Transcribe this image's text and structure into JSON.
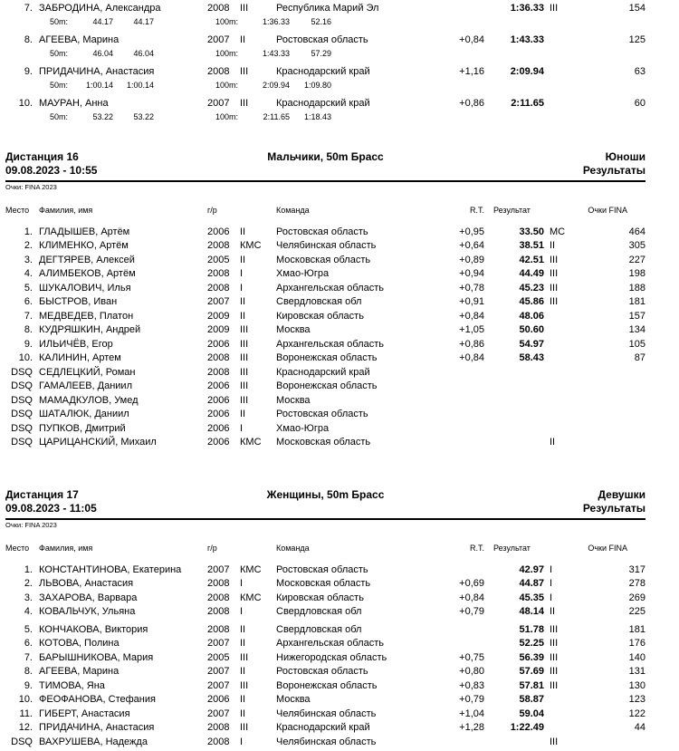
{
  "style": {
    "text_color": "#000000",
    "background_color": "#ffffff"
  },
  "continuation": {
    "rows": [
      {
        "place": "7.",
        "name": "ЗАБРОДИНА, Александра",
        "year": "2008",
        "rank": "III",
        "team": "Республика Марий Эл",
        "rt": "",
        "result": "1:36.33",
        "result_rank": "III",
        "points": "154",
        "split_label_50": "50m:",
        "split_50_a": "44.17",
        "split_50_b": "44.17",
        "split_label_100": "100m:",
        "split_100_a": "1:36.33",
        "split_100_b": "52.16"
      },
      {
        "place": "8.",
        "name": "АГЕЕВА, Марина",
        "year": "2007",
        "rank": "II",
        "team": "Ростовская область",
        "rt": "+0,84",
        "result": "1:43.33",
        "result_rank": "",
        "points": "125",
        "split_label_50": "50m:",
        "split_50_a": "46.04",
        "split_50_b": "46.04",
        "split_label_100": "100m:",
        "split_100_a": "1:43.33",
        "split_100_b": "57.29"
      },
      {
        "place": "9.",
        "name": "ПРИДАЧИНА, Анастасия",
        "year": "2008",
        "rank": "III",
        "team": "Краснодарский край",
        "rt": "+1,16",
        "result": "2:09.94",
        "result_rank": "",
        "points": "63",
        "split_label_50": "50m:",
        "split_50_a": "1:00.14",
        "split_50_b": "1:00.14",
        "split_label_100": "100m:",
        "split_100_a": "2:09.94",
        "split_100_b": "1:09.80"
      },
      {
        "place": "10.",
        "name": "МАУРАН, Анна",
        "year": "2007",
        "rank": "III",
        "team": "Краснодарский край",
        "rt": "+0,86",
        "result": "2:11.65",
        "result_rank": "",
        "points": "60",
        "split_label_50": "50m:",
        "split_50_a": "53.22",
        "split_50_b": "53.22",
        "split_label_100": "100m:",
        "split_100_a": "2:11.65",
        "split_100_b": "1:18.43"
      }
    ]
  },
  "sections": [
    {
      "distance_label": "Дистанция 16",
      "datetime": "09.08.2023 - 10:55",
      "event_title": "Мальчики, 50m Брасс",
      "group_label": "Юноши",
      "results_label": "Результаты",
      "points_note": "Очки: FINA 2023",
      "columns": {
        "place": "Место",
        "name": "Фамилия, имя",
        "year": "г/р",
        "team": "Команда",
        "rt": "R.T.",
        "result": "Результат",
        "points": "Очки FINA"
      },
      "rows": [
        {
          "place": "1.",
          "name": "ГЛАДЫШЕВ, Артём",
          "year": "2006",
          "rank": "II",
          "team": "Ростовская область",
          "rt": "+0,95",
          "result": "33.50",
          "result_rank": "МС",
          "points": "464"
        },
        {
          "place": "2.",
          "name": "КЛИМЕНКО, Артём",
          "year": "2008",
          "rank": "КМС",
          "team": "Челябинская область",
          "rt": "+0,64",
          "result": "38.51",
          "result_rank": "II",
          "points": "305"
        },
        {
          "place": "3.",
          "name": "ДЕГТЯРЕВ, Алексей",
          "year": "2005",
          "rank": "II",
          "team": "Московская область",
          "rt": "+0,89",
          "result": "42.51",
          "result_rank": "III",
          "points": "227"
        },
        {
          "place": "4.",
          "name": "АЛИМБЕКОВ, Артём",
          "year": "2008",
          "rank": "I",
          "team": "Хмао-Югра",
          "rt": "+0,94",
          "result": "44.49",
          "result_rank": "III",
          "points": "198"
        },
        {
          "place": "5.",
          "name": "ШУКАЛОВИЧ, Илья",
          "year": "2008",
          "rank": "I",
          "team": "Архангельская область",
          "rt": "+0,78",
          "result": "45.23",
          "result_rank": "III",
          "points": "188"
        },
        {
          "place": "6.",
          "name": "БЫСТРОВ, Иван",
          "year": "2007",
          "rank": "II",
          "team": "Свердловская обл",
          "rt": "+0,91",
          "result": "45.86",
          "result_rank": "III",
          "points": "181"
        },
        {
          "place": "7.",
          "name": "МЕДВЕДЕВ, Платон",
          "year": "2009",
          "rank": "II",
          "team": "Кировская область",
          "rt": "+0,84",
          "result": "48.06",
          "result_rank": "",
          "points": "157"
        },
        {
          "place": "8.",
          "name": "КУДРЯШКИН, Андрей",
          "year": "2009",
          "rank": "III",
          "team": "Москва",
          "rt": "+1,05",
          "result": "50.60",
          "result_rank": "",
          "points": "134"
        },
        {
          "place": "9.",
          "name": "ИЛЬИЧЁВ, Егор",
          "year": "2006",
          "rank": "III",
          "team": "Архангельская область",
          "rt": "+0,86",
          "result": "54.97",
          "result_rank": "",
          "points": "105"
        },
        {
          "place": "10.",
          "name": "КАЛИНИН, Артем",
          "year": "2008",
          "rank": "III",
          "team": "Воронежская область",
          "rt": "+0,84",
          "result": "58.43",
          "result_rank": "",
          "points": "87"
        },
        {
          "place": "DSQ",
          "name": "СЕДЛЕЦКИЙ, Роман",
          "year": "2008",
          "rank": "III",
          "team": "Краснодарский край",
          "rt": "",
          "result": "",
          "result_rank": "",
          "points": ""
        },
        {
          "place": "DSQ",
          "name": "ГАМАЛЕЕВ, Даниил",
          "year": "2006",
          "rank": "III",
          "team": "Воронежская область",
          "rt": "",
          "result": "",
          "result_rank": "",
          "points": ""
        },
        {
          "place": "DSQ",
          "name": "МАМАДКУЛОВ, Умед",
          "year": "2006",
          "rank": "III",
          "team": "Москва",
          "rt": "",
          "result": "",
          "result_rank": "",
          "points": ""
        },
        {
          "place": "DSQ",
          "name": "ШАТАЛЮК, Даниил",
          "year": "2006",
          "rank": "II",
          "team": "Ростовская область",
          "rt": "",
          "result": "",
          "result_rank": "",
          "points": ""
        },
        {
          "place": "DSQ",
          "name": "ПУПКОВ, Дмитрий",
          "year": "2006",
          "rank": "I",
          "team": "Хмао-Югра",
          "rt": "",
          "result": "",
          "result_rank": "",
          "points": ""
        },
        {
          "place": "DSQ",
          "name": "ЦАРИЦАНСКИЙ, Михаил",
          "year": "2006",
          "rank": "КМС",
          "team": "Московская область",
          "rt": "",
          "result": "",
          "result_rank": "II",
          "points": ""
        }
      ]
    },
    {
      "distance_label": "Дистанция 17",
      "datetime": "09.08.2023 - 11:05",
      "event_title": "Женщины, 50m Брасс",
      "group_label": "Девушки",
      "results_label": "Результаты",
      "points_note": "Очки: FINA 2023",
      "columns": {
        "place": "Место",
        "name": "Фамилия, имя",
        "year": "г/р",
        "team": "Команда",
        "rt": "R.T.",
        "result": "Результат",
        "points": "Очки FINA"
      },
      "rows": [
        {
          "place": "1.",
          "name": "КОНСТАНТИНОВА, Екатерина",
          "year": "2007",
          "rank": "КМС",
          "team": "Ростовская область",
          "rt": "",
          "result": "42.97",
          "result_rank": "I",
          "points": "317"
        },
        {
          "place": "2.",
          "name": "ЛЬВОВА, Анастасия",
          "year": "2008",
          "rank": "I",
          "team": "Московская область",
          "rt": "+0,69",
          "result": "44.87",
          "result_rank": "I",
          "points": "278"
        },
        {
          "place": "3.",
          "name": "ЗАХАРОВА, Варвара",
          "year": "2008",
          "rank": "КМС",
          "team": "Кировская область",
          "rt": "+0,84",
          "result": "45.35",
          "result_rank": "I",
          "points": "269"
        },
        {
          "place": "4.",
          "name": "КОВАЛЬЧУК, Ульяна",
          "year": "2008",
          "rank": "I",
          "team": "Свердловская обл",
          "rt": "+0,79",
          "result": "48.14",
          "result_rank": "II",
          "points": "225"
        },
        {
          "place": "5.",
          "name": "КОНЧАКОВА, Виктория",
          "year": "2008",
          "rank": "II",
          "team": "Свердловская обл",
          "rt": "",
          "result": "51.78",
          "result_rank": "III",
          "points": "181"
        },
        {
          "place": "6.",
          "name": "КОТОВА, Полина",
          "year": "2007",
          "rank": "II",
          "team": "Архангельская область",
          "rt": "",
          "result": "52.25",
          "result_rank": "III",
          "points": "176"
        },
        {
          "place": "7.",
          "name": "БАРЫШНИКОВА, Мария",
          "year": "2005",
          "rank": "III",
          "team": "Нижегородская область",
          "rt": "+0,75",
          "result": "56.39",
          "result_rank": "III",
          "points": "140"
        },
        {
          "place": "8.",
          "name": "АГЕЕВА, Марина",
          "year": "2007",
          "rank": "II",
          "team": "Ростовская область",
          "rt": "+0,80",
          "result": "57.69",
          "result_rank": "III",
          "points": "131"
        },
        {
          "place": "9.",
          "name": "ТИМОВА, Яна",
          "year": "2007",
          "rank": "III",
          "team": "Воронежская область",
          "rt": "+0,83",
          "result": "57.81",
          "result_rank": "III",
          "points": "130"
        },
        {
          "place": "10.",
          "name": "ФЕОФАНОВА, Стефания",
          "year": "2006",
          "rank": "II",
          "team": "Москва",
          "rt": "+0,79",
          "result": "58.87",
          "result_rank": "",
          "points": "123"
        },
        {
          "place": "11.",
          "name": "ГИБЕРТ, Анастасия",
          "year": "2007",
          "rank": "II",
          "team": "Челябинская область",
          "rt": "+1,04",
          "result": "59.04",
          "result_rank": "",
          "points": "122"
        },
        {
          "place": "12.",
          "name": "ПРИДАЧИНА, Анастасия",
          "year": "2008",
          "rank": "III",
          "team": "Краснодарский край",
          "rt": "+1,28",
          "result": "1:22.49",
          "result_rank": "",
          "points": "44"
        },
        {
          "place": "DSQ",
          "name": "ВАХРУШЕВА, Надежда",
          "year": "2008",
          "rank": "I",
          "team": "Челябинская область",
          "rt": "",
          "result": "",
          "result_rank": "III",
          "points": ""
        }
      ]
    }
  ]
}
